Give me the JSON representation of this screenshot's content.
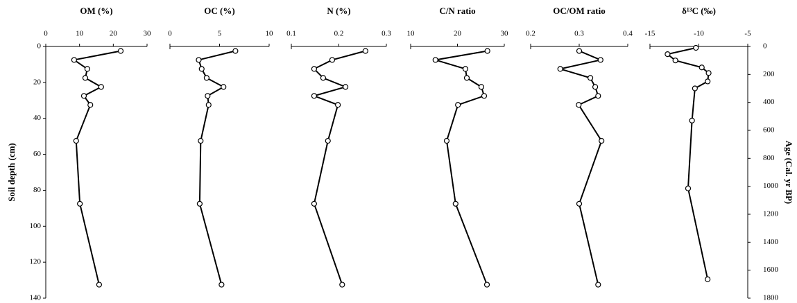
{
  "chart_data": [
    {
      "type": "line",
      "title": "OM (%)",
      "xlim": [
        0,
        30
      ],
      "xticks": [
        0,
        10,
        20,
        30
      ],
      "ylabel": "Soil depth (cm)",
      "ylim": [
        0,
        140
      ],
      "yticks": [
        0,
        20,
        40,
        60,
        80,
        100,
        120,
        140
      ],
      "depth": [
        2.5,
        7.5,
        12.5,
        17.5,
        22.5,
        27.5,
        32.5,
        52.5,
        87.5,
        132.5
      ],
      "values": [
        22.2,
        8.4,
        12.3,
        11.7,
        16.4,
        11.3,
        13.2,
        9.0,
        10.1,
        15.8
      ],
      "color": "#000000"
    },
    {
      "type": "line",
      "title": "OC (%)",
      "xlim": [
        0,
        10
      ],
      "xticks": [
        0,
        5,
        10
      ],
      "depth": [
        2.5,
        7.5,
        12.5,
        17.5,
        22.5,
        27.5,
        32.5,
        52.5,
        87.5,
        132.5
      ],
      "values": [
        6.6,
        2.9,
        3.2,
        3.7,
        5.4,
        3.8,
        3.9,
        3.1,
        3.0,
        5.2
      ],
      "color": "#000000"
    },
    {
      "type": "line",
      "title": "N (%)",
      "xlim": [
        0.1,
        0.3
      ],
      "xticks": [
        0.1,
        0.2,
        0.3
      ],
      "depth": [
        2.5,
        7.5,
        12.5,
        17.5,
        22.5,
        27.5,
        32.5,
        52.5,
        87.5,
        132.5
      ],
      "values": [
        0.256,
        0.186,
        0.148,
        0.167,
        0.214,
        0.148,
        0.198,
        0.177,
        0.148,
        0.207
      ],
      "color": "#000000"
    },
    {
      "type": "line",
      "title": "C/N ratio",
      "xlim": [
        10,
        30
      ],
      "xticks": [
        10,
        20,
        30
      ],
      "depth": [
        2.5,
        7.5,
        12.5,
        17.5,
        22.5,
        27.5,
        32.5,
        52.5,
        87.5,
        132.5
      ],
      "values": [
        26.4,
        15.3,
        21.7,
        22.0,
        25.1,
        25.7,
        20.1,
        17.7,
        19.6,
        26.3
      ],
      "color": "#000000"
    },
    {
      "type": "line",
      "title": "OC/OM ratio",
      "xlim": [
        0.2,
        0.4
      ],
      "xticks": [
        0.2,
        0.3,
        0.4
      ],
      "depth": [
        2.5,
        7.5,
        12.5,
        17.5,
        22.5,
        27.5,
        32.5,
        52.5,
        87.5,
        132.5
      ],
      "values": [
        0.3,
        0.344,
        0.261,
        0.323,
        0.333,
        0.339,
        0.299,
        0.346,
        0.3,
        0.339
      ],
      "color": "#000000"
    },
    {
      "type": "line",
      "title": "δ¹³C (‰)",
      "xlim": [
        -15,
        -5
      ],
      "xticks": [
        -15,
        -10,
        -5
      ],
      "y2label": "Age (Cal. yr BP)",
      "y2lim": [
        0,
        1800
      ],
      "y2ticks": [
        0,
        200,
        400,
        600,
        800,
        1000,
        1200,
        1400,
        1600,
        1800
      ],
      "axis": "y2",
      "age": [
        10,
        55,
        100,
        150,
        190,
        250,
        300,
        530,
        1015,
        1665
      ],
      "values": [
        -10.3,
        -13.2,
        -12.4,
        -9.7,
        -9.0,
        -9.1,
        -10.4,
        -10.7,
        -11.1,
        -9.1
      ],
      "color": "#000000"
    }
  ]
}
